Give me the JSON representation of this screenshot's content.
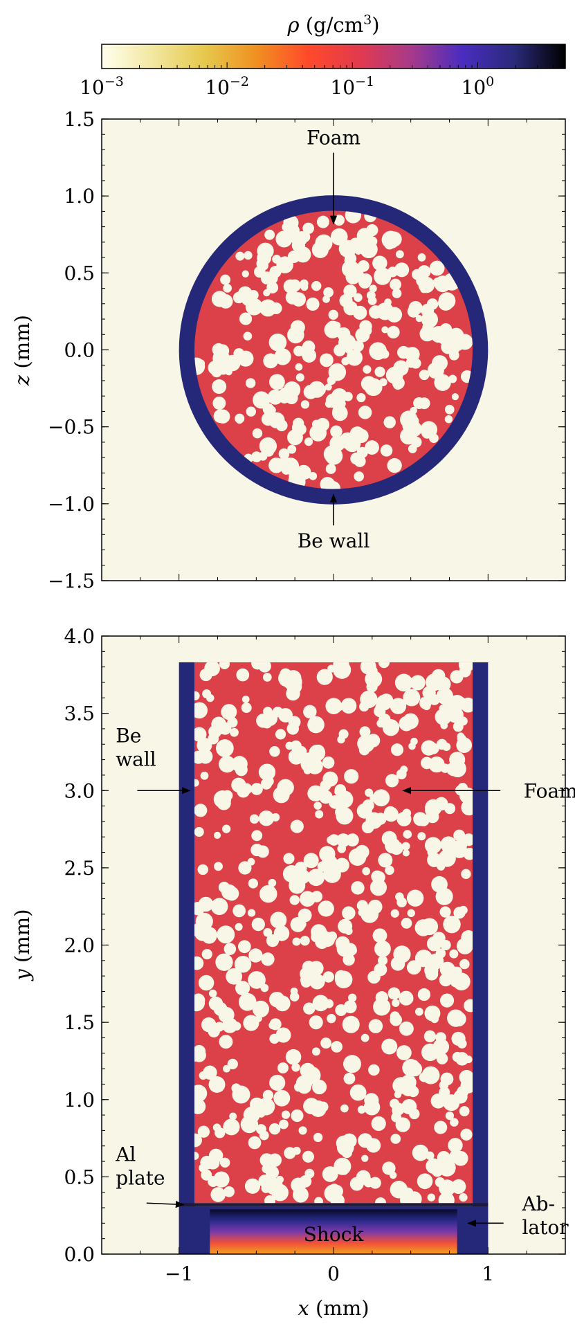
{
  "colors": {
    "background": "#f8f6e6",
    "foam": "#dc4048",
    "be_wall": "#252778",
    "pore": "#f8f6e6",
    "axes": "#000000"
  },
  "colorbar": {
    "label_symbol": "ρ",
    "label_unit": "(g/cm",
    "label_sup": "3",
    "label_close": ")",
    "scale": "log",
    "range": [
      0.001,
      5
    ],
    "colormap": "CMRmap-like",
    "stops": [
      "#ffffee",
      "#f2e7a0",
      "#e6c84c",
      "#f09020",
      "#ff4a2a",
      "#e23a4e",
      "#a83a8a",
      "#4a2cc0",
      "#2a2a7a",
      "#000000"
    ],
    "ticks": [
      {
        "value": 0.001,
        "base": "10",
        "exp": "−3"
      },
      {
        "value": 0.01,
        "base": "10",
        "exp": "−2"
      },
      {
        "value": 0.1,
        "base": "10",
        "exp": "−1"
      },
      {
        "value": 1,
        "base": "10",
        "exp": "0"
      }
    ]
  },
  "chart_data": [
    {
      "type": "heatmap",
      "panel": "top",
      "description_of_content": "cross-section of cylindrical target",
      "xlim": [
        -1.5,
        1.5
      ],
      "ylim": [
        -1.5,
        1.5
      ],
      "ylabel_var": "z",
      "ylabel_unit": " (mm)",
      "yticks": [
        {
          "value": 1.5,
          "label": "1.5"
        },
        {
          "value": 1.0,
          "label": "1.0"
        },
        {
          "value": 0.5,
          "label": "0.5"
        },
        {
          "value": 0.0,
          "label": "0.0"
        },
        {
          "value": -0.5,
          "label": "−0.5"
        },
        {
          "value": -1.0,
          "label": "−1.0"
        },
        {
          "value": -1.5,
          "label": "−1.5"
        }
      ],
      "regions": {
        "be_wall_outer_radius": 1.0,
        "be_wall_inner_radius": 0.9,
        "foam_radius": 0.9
      },
      "annotations": [
        {
          "text": "Foam",
          "x": 0.0,
          "y": 1.38,
          "arrow_to": [
            0.0,
            0.82
          ]
        },
        {
          "text": "Be wall",
          "x": 0.0,
          "y": -1.24,
          "arrow_to": [
            0.0,
            -0.94
          ]
        }
      ]
    },
    {
      "type": "heatmap",
      "panel": "bottom",
      "description_of_content": "side view of target",
      "xlim": [
        -1.5,
        1.5
      ],
      "ylim": [
        0.0,
        4.0
      ],
      "xlabel_var": "x",
      "xlabel_unit": " (mm)",
      "ylabel_var": "y",
      "ylabel_unit": " (mm)",
      "xticks": [
        {
          "value": -1,
          "label": "−1"
        },
        {
          "value": 0,
          "label": "0"
        },
        {
          "value": 1,
          "label": "1"
        }
      ],
      "yticks": [
        {
          "value": 4.0,
          "label": "4.0"
        },
        {
          "value": 3.5,
          "label": "3.5"
        },
        {
          "value": 3.0,
          "label": "3.0"
        },
        {
          "value": 2.5,
          "label": "2.5"
        },
        {
          "value": 2.0,
          "label": "2.0"
        },
        {
          "value": 1.5,
          "label": "1.5"
        },
        {
          "value": 1.0,
          "label": "1.0"
        },
        {
          "value": 0.5,
          "label": "0.5"
        },
        {
          "value": 0.0,
          "label": "0.0"
        }
      ],
      "regions": {
        "be_wall_x": [
          [
            -1.0,
            -0.9
          ],
          [
            0.9,
            1.0
          ]
        ],
        "be_wall_top_y": 3.83,
        "foam_x": [
          -0.9,
          0.9
        ],
        "foam_y": [
          0.33,
          3.83
        ],
        "al_plate_y": [
          0.31,
          0.33
        ],
        "ablator_x_full": [
          -1.0,
          1.0
        ],
        "ablator_y": [
          0.0,
          0.31
        ],
        "shock_x": [
          -0.8,
          0.8
        ],
        "shock_y": [
          0.0,
          0.29
        ]
      },
      "annotations": [
        {
          "lines": [
            "Be",
            "wall"
          ],
          "x": -1.32,
          "y": 3.28,
          "arrow_from": [
            -1.27,
            3.0
          ],
          "arrow_to": [
            -0.93,
            3.0
          ]
        },
        {
          "lines": [
            "Foam"
          ],
          "x": 1.23,
          "y": 3.0,
          "arrow_from": [
            1.08,
            3.0
          ],
          "arrow_to": [
            0.45,
            3.0
          ]
        },
        {
          "lines": [
            "Al",
            "plate"
          ],
          "x": -1.32,
          "y": 0.57,
          "arrow_from": [
            -1.21,
            0.33
          ],
          "arrow_to": [
            -0.97,
            0.32
          ]
        },
        {
          "lines": [
            "Ab-",
            "lator"
          ],
          "x": 1.22,
          "y": 0.25,
          "arrow_from": [
            1.1,
            0.2
          ],
          "arrow_to": [
            0.87,
            0.2
          ]
        },
        {
          "lines": [
            "Shock"
          ],
          "x": 0.0,
          "y": 0.13
        }
      ]
    }
  ]
}
